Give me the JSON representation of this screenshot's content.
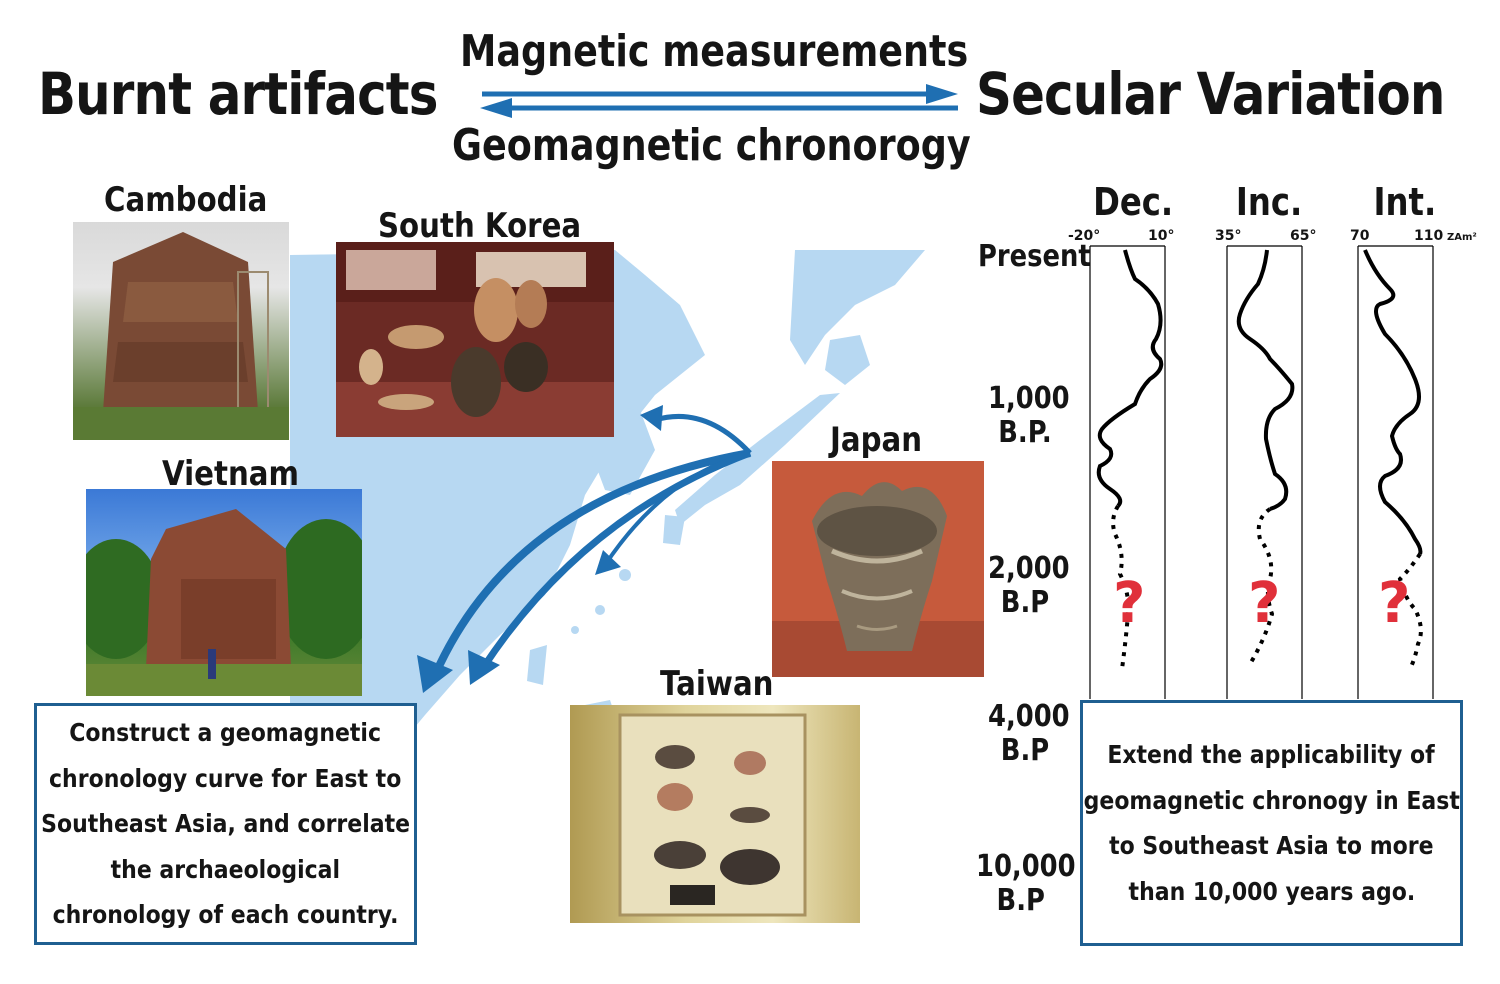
{
  "header": {
    "left_title": "Burnt artifacts",
    "right_title": "Secular Variation",
    "top_label": "Magnetic measurements",
    "bottom_label": "Geomagnetic chronorogy"
  },
  "countries": {
    "cambodia": "Cambodia",
    "south_korea": "South Korea",
    "vietnam": "Vietnam",
    "japan": "Japan",
    "taiwan": "Taiwan"
  },
  "left_box": {
    "lines": [
      "Construct a geomagnetic",
      "chronology curve for East to",
      "Southeast Asia, and correlate",
      "the archaeological",
      "chronology of each country."
    ]
  },
  "right_box": {
    "lines": [
      "Extend the applicability of",
      "geomagnetic chronogy in East",
      "to Southeast Asia to more",
      "than 10,000 years ago."
    ]
  },
  "secular_variation": {
    "panels": [
      {
        "title": "Dec.",
        "tick_min": "-20°",
        "tick_max": "10°",
        "unit": ""
      },
      {
        "title": "Inc.",
        "tick_min": "35°",
        "tick_max": "65°",
        "unit": ""
      },
      {
        "title": "Int.",
        "tick_min": "70",
        "tick_max": "110",
        "unit": "ZAm²"
      }
    ],
    "ages": [
      {
        "line1": "Present",
        "line2": ""
      },
      {
        "line1": "1,000",
        "line2": "B.P."
      },
      {
        "line1": "2,000",
        "line2": "B.P"
      },
      {
        "line1": "4,000",
        "line2": "B.P"
      },
      {
        "line1": "10,000",
        "line2": "B.P"
      }
    ],
    "unknown_mark": "?"
  },
  "colors": {
    "arrow_blue": "#1f6fb2",
    "box_border": "#1f5f91",
    "map_blue": "#b7d8f2",
    "question_red": "#e0303a"
  }
}
